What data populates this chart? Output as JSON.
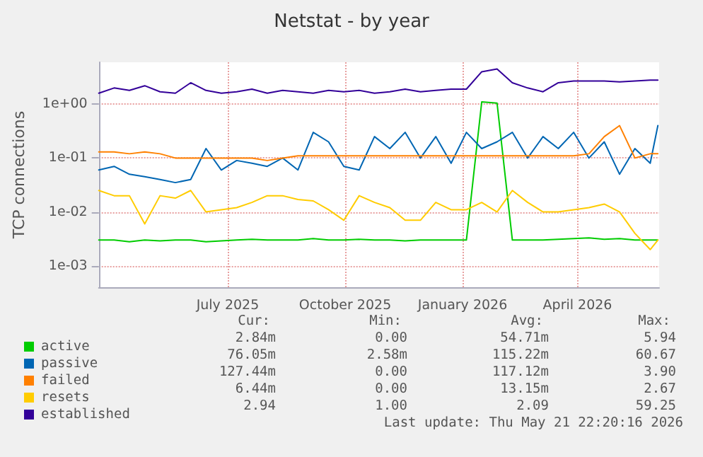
{
  "chart_data": {
    "type": "line",
    "title": "Netstat - by year",
    "ylabel": "TCP connections",
    "x": [
      "2025-03-22",
      "2025-04-03",
      "2025-04-15",
      "2025-04-27",
      "2025-05-09",
      "2025-05-21",
      "2025-06-02",
      "2025-06-14",
      "2025-06-26",
      "2025-07-08",
      "2025-07-20",
      "2025-08-01",
      "2025-08-13",
      "2025-08-25",
      "2025-09-06",
      "2025-09-18",
      "2025-09-30",
      "2025-10-12",
      "2025-10-24",
      "2025-11-05",
      "2025-11-17",
      "2025-11-29",
      "2025-12-11",
      "2025-12-23",
      "2026-01-04",
      "2026-01-16",
      "2026-01-28",
      "2026-02-09",
      "2026-02-21",
      "2026-03-05",
      "2026-03-17",
      "2026-03-29",
      "2026-04-10",
      "2026-04-22",
      "2026-05-04",
      "2026-05-16",
      "2026-05-28",
      "2026-06-03"
    ],
    "series": [
      {
        "name": "active",
        "color": "#00cc00",
        "values": [
          0.003,
          0.003,
          0.0028,
          0.003,
          0.0029,
          0.003,
          0.003,
          0.0028,
          0.0029,
          0.003,
          0.0031,
          0.003,
          0.003,
          0.003,
          0.0032,
          0.003,
          0.003,
          0.0031,
          0.003,
          0.003,
          0.0029,
          0.003,
          0.003,
          0.003,
          0.003,
          1.1,
          1.05,
          0.003,
          0.003,
          0.003,
          0.0031,
          0.0032,
          0.0033,
          0.0031,
          0.0032,
          0.003,
          0.003,
          0.003
        ]
      },
      {
        "name": "passive",
        "color": "#0066b3",
        "values": [
          0.06,
          0.07,
          0.05,
          0.045,
          0.04,
          0.035,
          0.04,
          0.15,
          0.06,
          0.09,
          0.08,
          0.07,
          0.1,
          0.06,
          0.3,
          0.2,
          0.07,
          0.06,
          0.25,
          0.15,
          0.3,
          0.1,
          0.25,
          0.08,
          0.3,
          0.15,
          0.2,
          0.3,
          0.1,
          0.25,
          0.15,
          0.3,
          0.1,
          0.2,
          0.05,
          0.15,
          0.08,
          0.4
        ]
      },
      {
        "name": "failed",
        "color": "#ff8000",
        "values": [
          0.13,
          0.13,
          0.12,
          0.13,
          0.12,
          0.1,
          0.1,
          0.1,
          0.1,
          0.1,
          0.1,
          0.09,
          0.1,
          0.11,
          0.11,
          0.11,
          0.11,
          0.11,
          0.11,
          0.11,
          0.11,
          0.11,
          0.11,
          0.11,
          0.11,
          0.11,
          0.11,
          0.11,
          0.11,
          0.11,
          0.11,
          0.11,
          0.12,
          0.25,
          0.4,
          0.1,
          0.12,
          0.12
        ]
      },
      {
        "name": "resets",
        "color": "#ffcc00",
        "values": [
          0.025,
          0.02,
          0.02,
          0.006,
          0.02,
          0.018,
          0.025,
          0.01,
          0.011,
          0.012,
          0.015,
          0.02,
          0.02,
          0.017,
          0.016,
          0.011,
          0.007,
          0.02,
          0.015,
          0.012,
          0.007,
          0.007,
          0.015,
          0.011,
          0.011,
          0.015,
          0.01,
          0.025,
          0.015,
          0.01,
          0.01,
          0.011,
          0.012,
          0.014,
          0.01,
          0.004,
          0.002,
          0.003
        ]
      },
      {
        "name": "established",
        "color": "#330099",
        "values": [
          1.6,
          2.0,
          1.8,
          2.2,
          1.7,
          1.6,
          2.5,
          1.8,
          1.6,
          1.7,
          1.9,
          1.6,
          1.8,
          1.7,
          1.6,
          1.8,
          1.7,
          1.8,
          1.6,
          1.7,
          1.9,
          1.7,
          1.8,
          1.9,
          1.9,
          4.0,
          4.5,
          2.5,
          2.0,
          1.7,
          2.5,
          2.7,
          2.7,
          2.7,
          2.6,
          2.7,
          2.8,
          2.8
        ]
      }
    ],
    "xlim": [
      "2025-03-22",
      "2026-06-04"
    ],
    "xticks": [
      {
        "value": "2025-07-01",
        "label": "July 2025"
      },
      {
        "value": "2025-10-01",
        "label": "October 2025"
      },
      {
        "value": "2026-01-01",
        "label": "January 2026"
      },
      {
        "value": "2026-04-01",
        "label": "April 2026"
      }
    ],
    "log": true,
    "ylim": [
      0.0004,
      6
    ],
    "yticks": [
      {
        "value": 0.001,
        "label": "1e-03"
      },
      {
        "value": 0.01,
        "label": "1e-02"
      },
      {
        "value": 0.1,
        "label": "1e-01"
      },
      {
        "value": 1,
        "label": "1e+00"
      }
    ],
    "grid": true,
    "legend": "bottom left",
    "marker": "none",
    "line_style": "solid",
    "annotations": [
      "Cur:",
      "Min:",
      "Avg:",
      "Max:",
      "2.84m",
      "0.00",
      "54.71m",
      "5.94",
      "76.05m",
      "2.58m",
      "115.22m",
      "60.67",
      "127.44m",
      "0.00",
      "117.12m",
      "3.90",
      "6.44m",
      "0.00",
      "13.15m",
      "2.67",
      "2.94",
      "1.00",
      "2.09",
      "59.25",
      "Last update: Thu May 21 22:20:16 2026"
    ]
  }
}
